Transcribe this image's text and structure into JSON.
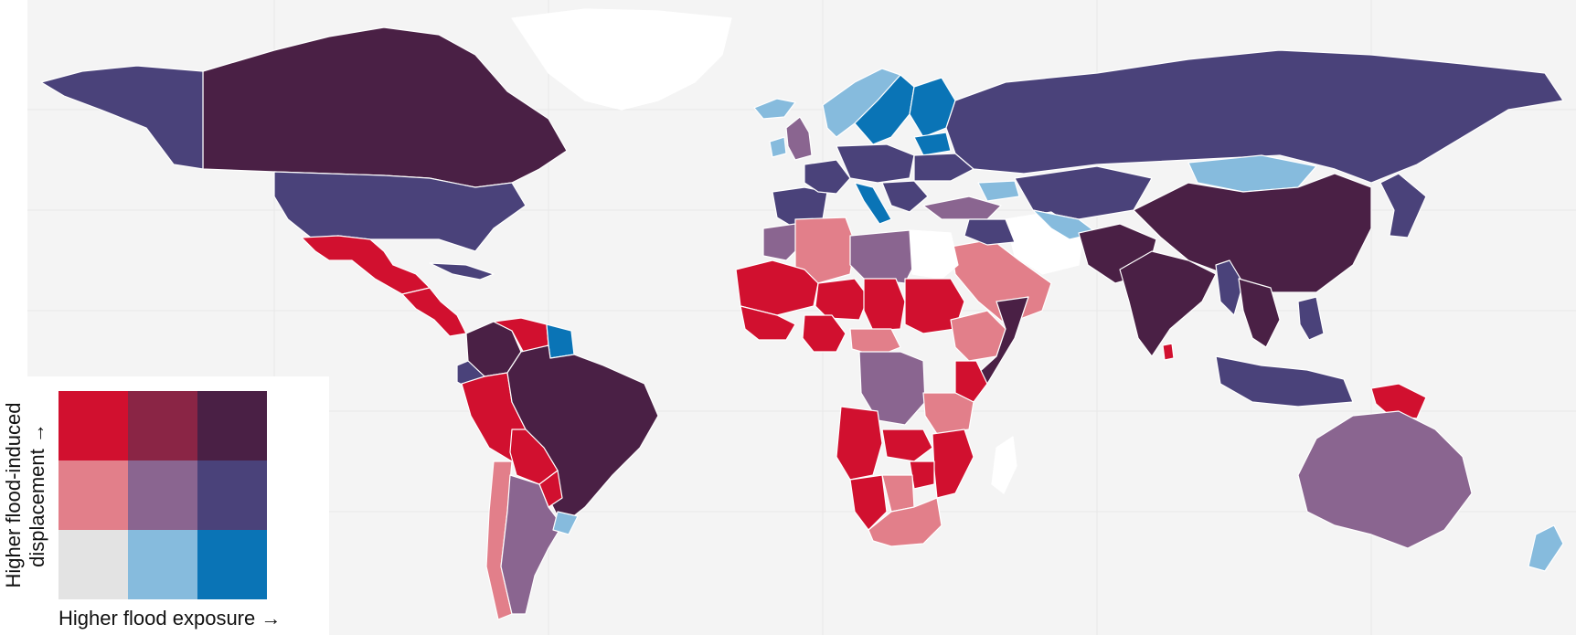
{
  "map": {
    "ocean_color": "#f4f4f4",
    "border_color": "#ffffff",
    "regions": [
      {
        "name": "canada",
        "class": "high-high"
      },
      {
        "name": "alaska",
        "class": "mid-high"
      },
      {
        "name": "greenland",
        "class": "no-data"
      },
      {
        "name": "usa",
        "class": "mid-high"
      },
      {
        "name": "mexico",
        "class": "high-low"
      },
      {
        "name": "central-america",
        "class": "high-low"
      },
      {
        "name": "cuba",
        "class": "mid-high"
      },
      {
        "name": "colombia",
        "class": "high-high"
      },
      {
        "name": "venezuela",
        "class": "high-low"
      },
      {
        "name": "guianas",
        "class": "low-high"
      },
      {
        "name": "ecuador",
        "class": "mid-high"
      },
      {
        "name": "peru",
        "class": "high-low"
      },
      {
        "name": "brazil",
        "class": "high-high"
      },
      {
        "name": "bolivia",
        "class": "high-low"
      },
      {
        "name": "paraguay",
        "class": "high-low"
      },
      {
        "name": "chile",
        "class": "mid-low"
      },
      {
        "name": "argentina",
        "class": "mid-mid"
      },
      {
        "name": "uruguay",
        "class": "low-mid"
      },
      {
        "name": "iceland",
        "class": "low-mid"
      },
      {
        "name": "uk",
        "class": "mid-mid"
      },
      {
        "name": "ireland",
        "class": "low-mid"
      },
      {
        "name": "norway",
        "class": "low-mid"
      },
      {
        "name": "sweden",
        "class": "low-high"
      },
      {
        "name": "finland",
        "class": "low-high"
      },
      {
        "name": "baltics",
        "class": "low-high"
      },
      {
        "name": "iberia",
        "class": "mid-high"
      },
      {
        "name": "france",
        "class": "mid-high"
      },
      {
        "name": "central-europe",
        "class": "mid-high"
      },
      {
        "name": "italy",
        "class": "low-high"
      },
      {
        "name": "balkans",
        "class": "mid-high"
      },
      {
        "name": "ukraine",
        "class": "mid-high"
      },
      {
        "name": "russia",
        "class": "mid-high"
      },
      {
        "name": "kazakhstan",
        "class": "mid-high"
      },
      {
        "name": "mongolia",
        "class": "low-mid"
      },
      {
        "name": "china",
        "class": "high-high"
      },
      {
        "name": "korea-japan",
        "class": "mid-high"
      },
      {
        "name": "turkey",
        "class": "mid-mid"
      },
      {
        "name": "caucasus",
        "class": "low-mid"
      },
      {
        "name": "iran",
        "class": "no-data"
      },
      {
        "name": "central-asia",
        "class": "low-mid"
      },
      {
        "name": "afghanistan-pakistan",
        "class": "high-high"
      },
      {
        "name": "india",
        "class": "high-high"
      },
      {
        "name": "sri-lanka",
        "class": "high-low"
      },
      {
        "name": "arabia",
        "class": "mid-low"
      },
      {
        "name": "iraq-syria",
        "class": "mid-high"
      },
      {
        "name": "myanmar",
        "class": "mid-high"
      },
      {
        "name": "indochina",
        "class": "high-high"
      },
      {
        "name": "philippines",
        "class": "mid-high"
      },
      {
        "name": "indonesia",
        "class": "mid-high"
      },
      {
        "name": "papua-new-guinea",
        "class": "high-low"
      },
      {
        "name": "australia",
        "class": "mid-mid"
      },
      {
        "name": "new-zealand",
        "class": "low-mid"
      },
      {
        "name": "morocco",
        "class": "mid-mid"
      },
      {
        "name": "algeria",
        "class": "mid-low"
      },
      {
        "name": "libya",
        "class": "mid-mid"
      },
      {
        "name": "egypt",
        "class": "no-data"
      },
      {
        "name": "mauritania-mali",
        "class": "high-low"
      },
      {
        "name": "niger",
        "class": "high-low"
      },
      {
        "name": "chad",
        "class": "high-low"
      },
      {
        "name": "sudan",
        "class": "high-low"
      },
      {
        "name": "west-africa-coast",
        "class": "high-low"
      },
      {
        "name": "nigeria",
        "class": "high-low"
      },
      {
        "name": "central-african-republic",
        "class": "mid-low"
      },
      {
        "name": "ethiopia",
        "class": "mid-low"
      },
      {
        "name": "somalia",
        "class": "high-high"
      },
      {
        "name": "kenya",
        "class": "high-low"
      },
      {
        "name": "drc",
        "class": "mid-mid"
      },
      {
        "name": "tanzania",
        "class": "mid-low"
      },
      {
        "name": "angola",
        "class": "high-low"
      },
      {
        "name": "zambia",
        "class": "high-low"
      },
      {
        "name": "mozambique",
        "class": "high-low"
      },
      {
        "name": "zimbabwe",
        "class": "high-low"
      },
      {
        "name": "namibia",
        "class": "high-low"
      },
      {
        "name": "botswana",
        "class": "mid-low"
      },
      {
        "name": "south-africa",
        "class": "mid-low"
      },
      {
        "name": "madagascar",
        "class": "no-data"
      }
    ]
  },
  "legend": {
    "x_label": "Higher flood exposure →",
    "y_label_line1": "Higher flood-induced",
    "y_label_line2": "displacement →",
    "palette": {
      "high-low": "#d1102f",
      "high-mid": "#8a2545",
      "high-high": "#4a2045",
      "mid-low": "#e27f8a",
      "mid-mid": "#8a6590",
      "mid-high": "#4a427a",
      "low-low": "#e3e3e3",
      "low-mid": "#86bbdd",
      "low-high": "#0a74b6",
      "no-data": "#ffffff"
    },
    "cells": [
      {
        "class": "high-low"
      },
      {
        "class": "high-mid"
      },
      {
        "class": "high-high"
      },
      {
        "class": "mid-low"
      },
      {
        "class": "mid-mid"
      },
      {
        "class": "mid-high"
      },
      {
        "class": "low-low"
      },
      {
        "class": "low-mid"
      },
      {
        "class": "low-high"
      }
    ]
  }
}
